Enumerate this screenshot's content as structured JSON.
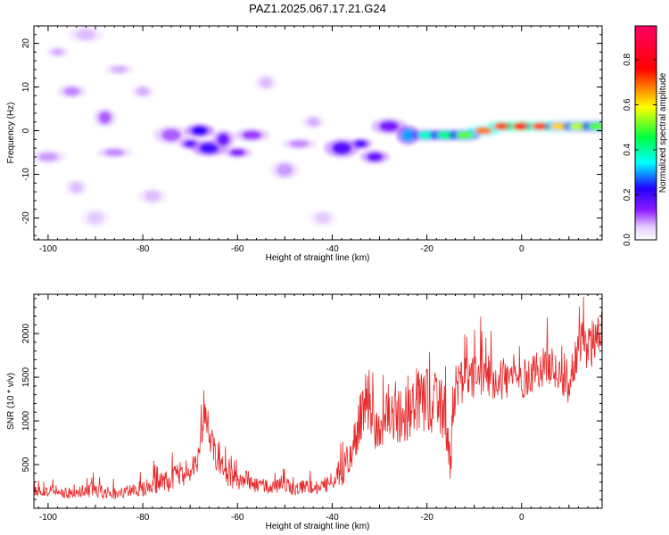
{
  "title": "PAZ1.2025.067.17.21.G24",
  "chart_data": [
    {
      "type": "heatmap",
      "xlabel": "Height of straight line (km)",
      "ylabel": "Frequency (Hz)",
      "xlim": [
        -103,
        17
      ],
      "ylim": [
        -25,
        24
      ],
      "xticks": [
        -100,
        -80,
        -60,
        -40,
        -20,
        0
      ],
      "yticks": [
        -20,
        -10,
        0,
        10,
        20
      ],
      "colorbar": {
        "label": "Normalized spectral amplitude",
        "range": [
          0,
          0.95
        ],
        "ticks": [
          0.0,
          0.2,
          0.4,
          0.6,
          0.8
        ],
        "colormap": [
          "#ffffff",
          "#d9b3ff",
          "#8c1aff",
          "#2200ff",
          "#00ffff",
          "#00ff40",
          "#ffff00",
          "#ff0000",
          "#ff0066"
        ]
      },
      "blobs": [
        {
          "x": -98,
          "y": 18,
          "amp": 0.06
        },
        {
          "x": -95,
          "y": 9,
          "amp": 0.08
        },
        {
          "x": -92,
          "y": 22,
          "amp": 0.05
        },
        {
          "x": -88,
          "y": 3,
          "amp": 0.1
        },
        {
          "x": -85,
          "y": 14,
          "amp": 0.06
        },
        {
          "x": -100,
          "y": -6,
          "amp": 0.07
        },
        {
          "x": -94,
          "y": -13,
          "amp": 0.05
        },
        {
          "x": -90,
          "y": -20,
          "amp": 0.04
        },
        {
          "x": -86,
          "y": -5,
          "amp": 0.08
        },
        {
          "x": -80,
          "y": 9,
          "amp": 0.06
        },
        {
          "x": -78,
          "y": -15,
          "amp": 0.05
        },
        {
          "x": -74,
          "y": -1,
          "amp": 0.1
        },
        {
          "x": -70,
          "y": -3,
          "amp": 0.18
        },
        {
          "x": -68,
          "y": 0,
          "amp": 0.22
        },
        {
          "x": -66,
          "y": -4,
          "amp": 0.2
        },
        {
          "x": -63,
          "y": -2,
          "amp": 0.16
        },
        {
          "x": -60,
          "y": -5,
          "amp": 0.14
        },
        {
          "x": -57,
          "y": -1,
          "amp": 0.12
        },
        {
          "x": -54,
          "y": 11,
          "amp": 0.05
        },
        {
          "x": -50,
          "y": -9,
          "amp": 0.07
        },
        {
          "x": -47,
          "y": -3,
          "amp": 0.08
        },
        {
          "x": -44,
          "y": 2,
          "amp": 0.06
        },
        {
          "x": -42,
          "y": -20,
          "amp": 0.04
        },
        {
          "x": -38,
          "y": -4,
          "amp": 0.18
        },
        {
          "x": -34,
          "y": -3,
          "amp": 0.2
        },
        {
          "x": -31,
          "y": -6,
          "amp": 0.17
        },
        {
          "x": -28,
          "y": 1,
          "amp": 0.15
        },
        {
          "x": -24,
          "y": -1,
          "amp": 0.3
        },
        {
          "x": -20,
          "y": -1,
          "amp": 0.38
        },
        {
          "x": -16,
          "y": -1,
          "amp": 0.42
        },
        {
          "x": -12,
          "y": -1,
          "amp": 0.5
        },
        {
          "x": -8,
          "y": 0,
          "amp": 0.68
        },
        {
          "x": -4,
          "y": 1,
          "amp": 0.72
        },
        {
          "x": 0,
          "y": 1,
          "amp": 0.78
        },
        {
          "x": 4,
          "y": 1,
          "amp": 0.72
        },
        {
          "x": 8,
          "y": 1,
          "amp": 0.62
        },
        {
          "x": 12,
          "y": 1,
          "amp": 0.55
        },
        {
          "x": 16,
          "y": 1,
          "amp": 0.5
        }
      ]
    },
    {
      "type": "line",
      "xlabel": "Height of straight line (km)",
      "ylabel": "SNR (10 * v/v)",
      "xlim": [
        -103,
        17
      ],
      "ylim": [
        0,
        2450
      ],
      "xticks": [
        -100,
        -80,
        -60,
        -40,
        -20,
        0
      ],
      "yticks": [
        500,
        1000,
        1500,
        2000
      ],
      "series_color": "#e8292a",
      "x": [
        -103,
        -100,
        -95,
        -90,
        -85,
        -80,
        -78,
        -76,
        -74,
        -72,
        -70,
        -68,
        -67,
        -66,
        -65,
        -64,
        -62,
        -60,
        -58,
        -56,
        -54,
        -52,
        -50,
        -48,
        -46,
        -44,
        -42,
        -40,
        -38,
        -36,
        -35,
        -34,
        -33,
        -32,
        -30,
        -28,
        -26,
        -24,
        -22,
        -20,
        -18,
        -16,
        -15,
        -14,
        -12,
        -10,
        -8,
        -6,
        -4,
        -2,
        0,
        2,
        4,
        6,
        8,
        10,
        12,
        14,
        16,
        17
      ],
      "y": [
        180,
        200,
        170,
        210,
        160,
        230,
        260,
        300,
        330,
        380,
        450,
        600,
        1100,
        900,
        700,
        500,
        380,
        300,
        330,
        260,
        250,
        240,
        280,
        220,
        260,
        230,
        260,
        300,
        420,
        600,
        800,
        1050,
        1300,
        1000,
        900,
        1150,
        1100,
        1000,
        1200,
        1250,
        1200,
        1050,
        500,
        1400,
        1450,
        1500,
        1550,
        1500,
        1450,
        1500,
        1450,
        1550,
        1600,
        1650,
        1500,
        1400,
        1900,
        1800,
        2000,
        2100
      ],
      "spread": [
        100,
        120,
        90,
        130,
        100,
        130,
        150,
        180,
        200,
        220,
        250,
        300,
        200,
        300,
        280,
        220,
        180,
        150,
        160,
        130,
        120,
        120,
        140,
        110,
        130,
        120,
        130,
        150,
        250,
        320,
        380,
        420,
        480,
        450,
        420,
        480,
        500,
        480,
        520,
        540,
        520,
        500,
        300,
        400,
        380,
        380,
        360,
        360,
        340,
        340,
        320,
        340,
        320,
        320,
        300,
        320,
        400,
        380,
        400,
        380
      ]
    }
  ]
}
